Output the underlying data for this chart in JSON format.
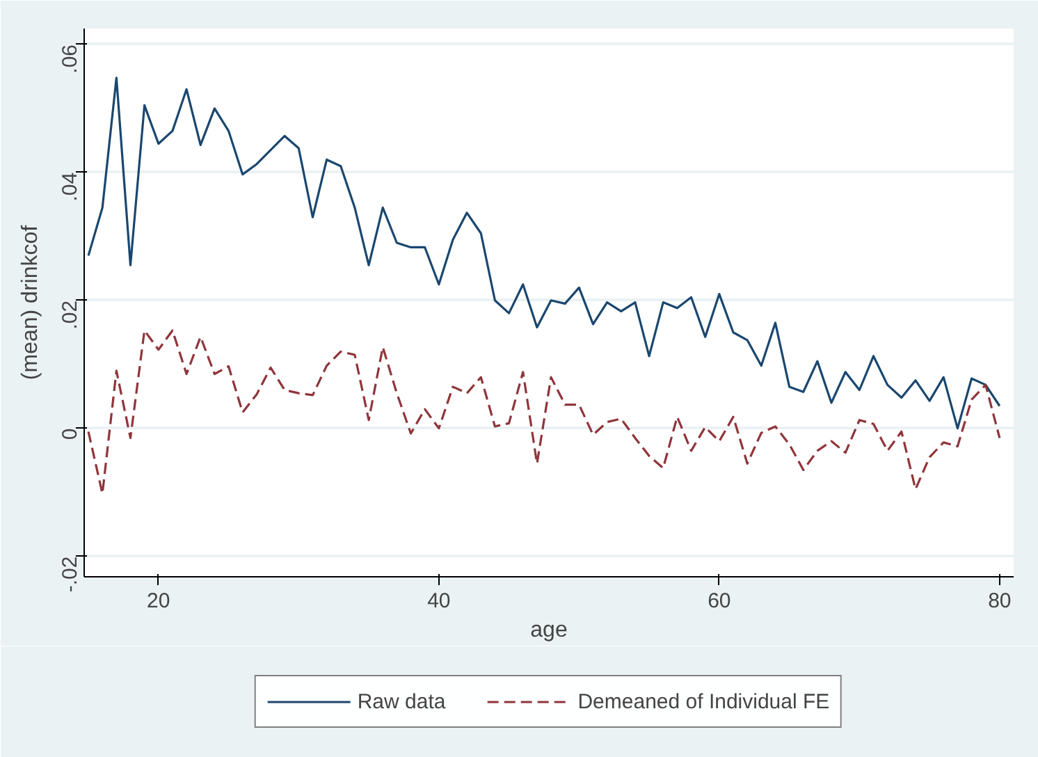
{
  "chart_data": {
    "type": "line",
    "xlabel": "age",
    "ylabel": "(mean) drinkcof",
    "x": [
      15,
      16,
      17,
      18,
      19,
      20,
      21,
      22,
      23,
      24,
      25,
      26,
      27,
      28,
      29,
      30,
      31,
      32,
      33,
      34,
      35,
      36,
      37,
      38,
      39,
      40,
      41,
      42,
      43,
      44,
      45,
      46,
      47,
      48,
      49,
      50,
      51,
      52,
      53,
      54,
      55,
      56,
      57,
      58,
      59,
      60,
      61,
      62,
      63,
      64,
      65,
      66,
      67,
      68,
      69,
      70,
      71,
      72,
      73,
      74,
      75,
      76,
      77,
      78,
      79,
      80
    ],
    "series": [
      {
        "name": "Raw data",
        "color": "#1a476f",
        "line_style": "solid",
        "values": [
          0.027,
          0.0345,
          0.0548,
          0.0255,
          0.0505,
          0.0445,
          0.0465,
          0.053,
          0.0443,
          0.05,
          0.0465,
          0.0397,
          0.0413,
          0.0435,
          0.0457,
          0.0438,
          0.033,
          0.042,
          0.041,
          0.0345,
          0.0255,
          0.0345,
          0.029,
          0.0283,
          0.0283,
          0.0225,
          0.0295,
          0.0337,
          0.0305,
          0.02,
          0.018,
          0.0225,
          0.0158,
          0.02,
          0.0195,
          0.022,
          0.0163,
          0.0197,
          0.0183,
          0.0197,
          0.0113,
          0.0197,
          0.0188,
          0.0205,
          0.0143,
          0.021,
          0.015,
          0.0138,
          0.0098,
          0.0165,
          0.0065,
          0.0057,
          0.0105,
          0.004,
          0.0088,
          0.006,
          0.0113,
          0.0068,
          0.0048,
          0.0075,
          0.0043,
          0.008,
          0.0,
          0.0078,
          0.0068,
          0.0035
        ]
      },
      {
        "name": "Demeaned of Individual FE",
        "color": "#90353b",
        "line_style": "dashed",
        "values": [
          -0.0005,
          -0.0102,
          0.009,
          -0.0015,
          0.0153,
          0.0123,
          0.0153,
          0.0085,
          0.0143,
          0.0085,
          0.0097,
          0.0025,
          0.0053,
          0.0095,
          0.006,
          0.0055,
          0.0052,
          0.0098,
          0.012,
          0.0115,
          0.0013,
          0.0127,
          0.0055,
          -0.0008,
          0.003,
          0.0,
          0.0065,
          0.0055,
          0.008,
          0.0003,
          0.0008,
          0.0088,
          -0.0055,
          0.008,
          0.0037,
          0.0037,
          -0.001,
          0.001,
          0.0015,
          -0.0015,
          -0.0043,
          -0.0062,
          0.0018,
          -0.0035,
          0.0002,
          -0.002,
          0.0018,
          -0.0055,
          -0.0007,
          0.0003,
          -0.0025,
          -0.0065,
          -0.0035,
          -0.002,
          -0.0038,
          0.0013,
          0.0007,
          -0.0035,
          -0.0005,
          -0.0095,
          -0.0045,
          -0.0022,
          -0.0028,
          0.0045,
          0.0068,
          -0.0015
        ]
      }
    ],
    "xlim": [
      14.7,
      81.0
    ],
    "ylim": [
      -0.0232,
      0.0625
    ],
    "xticks": [
      20,
      40,
      60,
      80
    ],
    "yticks": [
      {
        "value": -0.02,
        "label": "-.02"
      },
      0,
      {
        "value": 0.02,
        "label": ".02"
      },
      {
        "value": 0.04,
        "label": ".04"
      },
      {
        "value": 0.06,
        "label": ".06"
      }
    ],
    "grid": "y",
    "legend": "bottom",
    "marker": "none"
  }
}
